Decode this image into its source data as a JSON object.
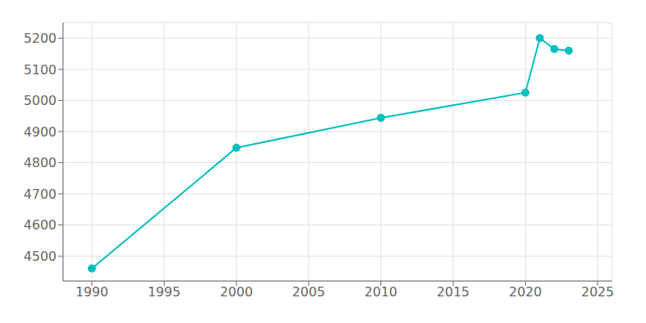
{
  "chart_data": {
    "type": "line",
    "x": [
      1990,
      2000,
      2010,
      2020,
      2021,
      2022,
      2023
    ],
    "values": [
      4460,
      4848,
      4944,
      5025,
      5200,
      5165,
      5160
    ],
    "color": "#00BFBF",
    "marker": "o",
    "xlim": [
      1988,
      2026
    ],
    "ylim": [
      4420,
      5250
    ],
    "xticks": [
      1990,
      1995,
      2000,
      2005,
      2010,
      2015,
      2020,
      2025
    ],
    "yticks": [
      4500,
      4600,
      4700,
      4800,
      4900,
      5000,
      5100,
      5200
    ],
    "grid": true
  }
}
